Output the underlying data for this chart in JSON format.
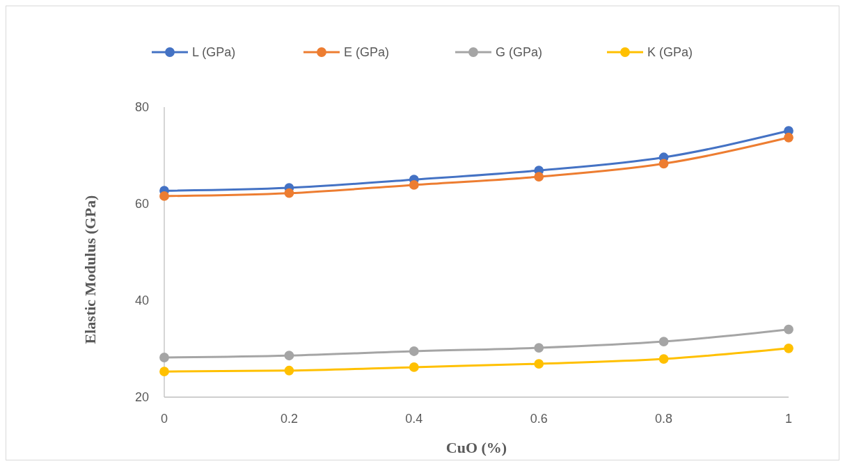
{
  "chart_data": {
    "type": "line",
    "xlabel": "CuO (%)",
    "ylabel": "Elastic Modulus (GPa)",
    "x": [
      0,
      0.2,
      0.4,
      0.6,
      0.8,
      1
    ],
    "xlim": [
      0,
      1
    ],
    "xticks": [
      0,
      0.2,
      0.4,
      0.6,
      0.8,
      1
    ],
    "ylim": [
      20,
      80
    ],
    "yticks": [
      20,
      40,
      60,
      80
    ],
    "grid": false,
    "legend": "top",
    "marker": "circle",
    "line_style": "solid",
    "series": [
      {
        "name": "L (GPa)",
        "color": "#4472c4",
        "values": [
          62.7,
          63.3,
          65.0,
          66.9,
          69.6,
          75.1
        ]
      },
      {
        "name": "E (GPa)",
        "color": "#ed7d31",
        "values": [
          61.6,
          62.2,
          63.9,
          65.6,
          68.3,
          73.7
        ]
      },
      {
        "name": "G (GPa)",
        "color": "#a5a5a5",
        "values": [
          28.2,
          28.6,
          29.5,
          30.2,
          31.5,
          34.0
        ]
      },
      {
        "name": "K (GPa)",
        "color": "#ffc000",
        "values": [
          25.3,
          25.5,
          26.2,
          26.9,
          27.9,
          30.1
        ]
      }
    ]
  }
}
